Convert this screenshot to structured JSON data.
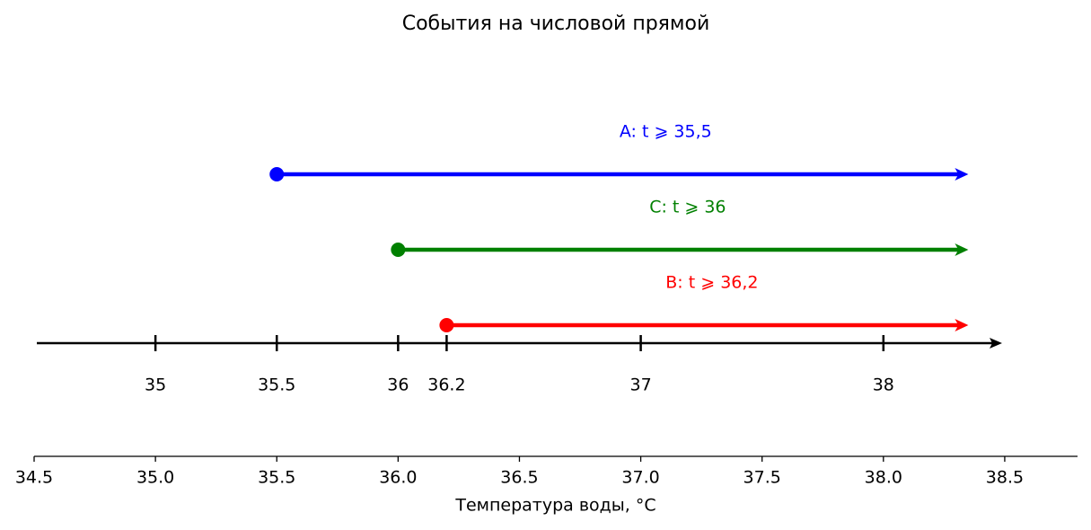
{
  "chart_data": {
    "type": "number-line-events",
    "title": "События на числовой прямой",
    "xlabel": "Температура воды, °C",
    "xlim": [
      34.5,
      38.8
    ],
    "xticks": [
      {
        "value": 34.5,
        "label": "34.5"
      },
      {
        "value": 35,
        "label": "35.0"
      },
      {
        "value": 35.5,
        "label": "35.5"
      },
      {
        "value": 36,
        "label": "36.0"
      },
      {
        "value": 36.5,
        "label": "36.5"
      },
      {
        "value": 37,
        "label": "37.0"
      },
      {
        "value": 37.5,
        "label": "37.5"
      },
      {
        "value": 38,
        "label": "38.0"
      },
      {
        "value": 38.5,
        "label": "38.5"
      }
    ],
    "number_line_ticks": [
      35,
      35.5,
      36,
      36.2,
      37,
      38
    ],
    "events": [
      {
        "label": "A: t ⩾ 35,5",
        "start": 35.5,
        "end": 38.35,
        "color": "#0000ff"
      },
      {
        "label": "C: t ⩾ 36",
        "start": 36,
        "end": 38.35,
        "color": "#008000"
      },
      {
        "label": "B: t ⩾ 36,2",
        "start": 36.2,
        "end": 38.35,
        "color": "#ff0000"
      }
    ]
  }
}
